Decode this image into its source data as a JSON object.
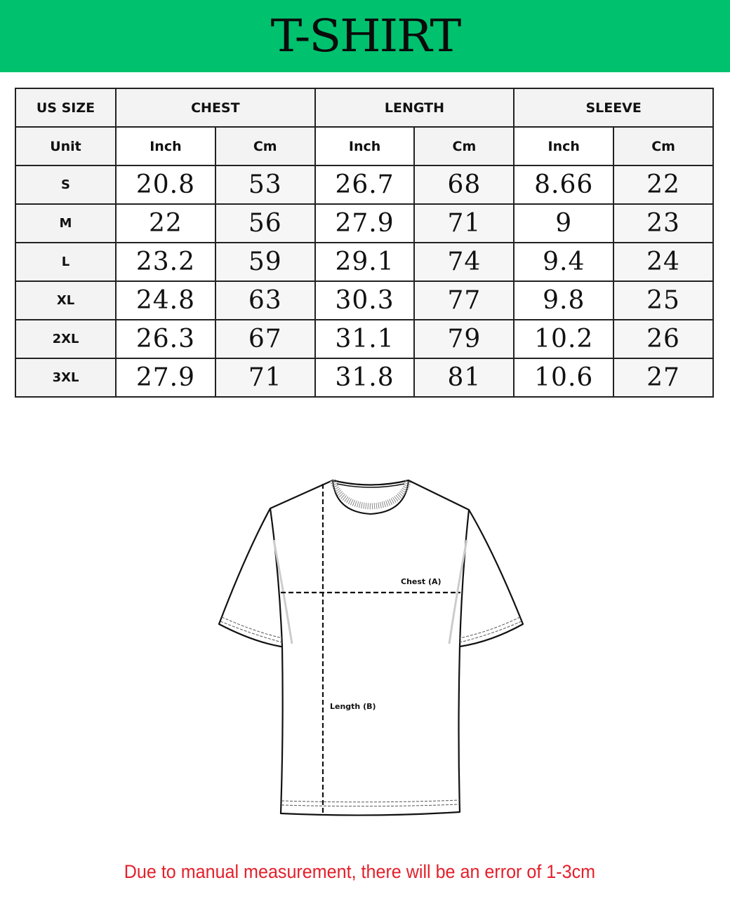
{
  "title": "T-SHIRT",
  "brand_color": "#00c16e",
  "table": {
    "headers": [
      "US SIZE",
      "CHEST",
      "LENGTH",
      "SLEEVE"
    ],
    "unit_label": "Unit",
    "units": [
      "Inch",
      "Cm",
      "Inch",
      "Cm",
      "Inch",
      "Cm"
    ],
    "rows": [
      {
        "size": "S",
        "values": [
          "20.8",
          "53",
          "26.7",
          "68",
          "8.66",
          "22"
        ]
      },
      {
        "size": "M",
        "values": [
          "22",
          "56",
          "27.9",
          "71",
          "9",
          "23"
        ]
      },
      {
        "size": "L",
        "values": [
          "23.2",
          "59",
          "29.1",
          "74",
          "9.4",
          "24"
        ]
      },
      {
        "size": "XL",
        "values": [
          "24.8",
          "63",
          "30.3",
          "77",
          "9.8",
          "25"
        ]
      },
      {
        "size": "2XL",
        "values": [
          "26.3",
          "67",
          "31.1",
          "79",
          "10.2",
          "26"
        ]
      },
      {
        "size": "3XL",
        "values": [
          "27.9",
          "71",
          "31.8",
          "81",
          "10.6",
          "27"
        ]
      }
    ]
  },
  "diagram": {
    "chest_label": "Chest (A)",
    "length_label": "Length (B)"
  },
  "note": "Due to manual measurement, there will be an error of 1-3cm",
  "note_color": "#e3202b"
}
